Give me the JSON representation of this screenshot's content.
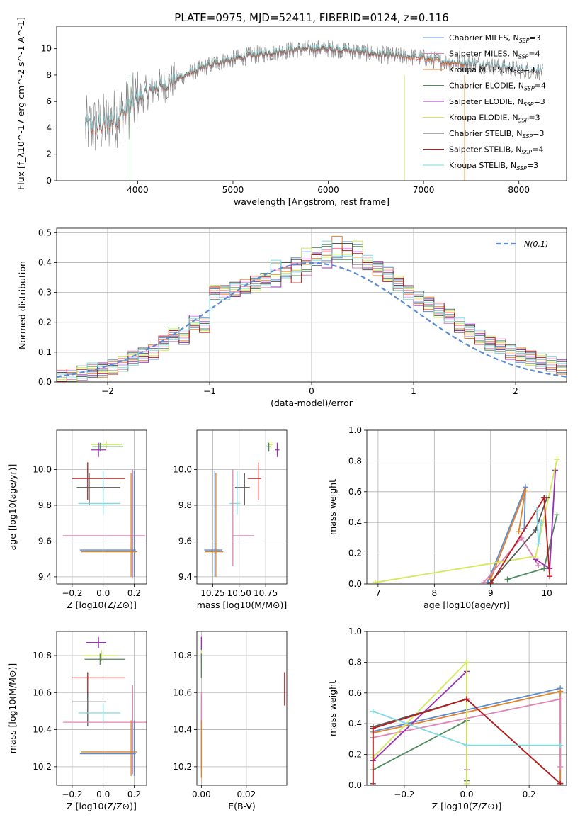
{
  "title": "PLATE=0975, MJD=52411, FIBERID=0124, z=0.116",
  "colors": {
    "Chabrier MILES": "#5b8bd0",
    "Salpeter MILES": "#e084b5",
    "Kroupa MILES": "#e0822a",
    "Chabrier ELODIE": "#4f8a5c",
    "Salpeter ELODIE": "#9b30b5",
    "Kroupa ELODIE": "#d4e85a",
    "Chabrier STELIB": "#555555",
    "Salpeter STELIB": "#b81c1c",
    "Kroupa STELIB": "#7fd9df",
    "gaussian": "#5b8bd0",
    "data": "#808080"
  },
  "chart_data": [
    {
      "id": "spectrum",
      "type": "line",
      "xlabel": "wavelength [Angstrom, rest frame]",
      "ylabel": "Flux [f_λ10^-17 erg cm^-2 s^-1 A^-1]",
      "xlim": [
        3150,
        8500
      ],
      "ylim": [
        0,
        11.7
      ],
      "xticks": [
        4000,
        5000,
        6000,
        7000,
        8000
      ],
      "yticks": [
        0,
        2,
        4,
        6,
        8,
        10
      ],
      "legend": [
        {
          "model": "Chabrier MILES",
          "label": "Chabrier MILES, N_SSP=3"
        },
        {
          "model": "Salpeter MILES",
          "label": "Salpeter MILES, N_SSP=4"
        },
        {
          "model": "Kroupa MILES",
          "label": "Kroupa MILES, N_SSP=3"
        },
        {
          "model": "Chabrier ELODIE",
          "label": "Chabrier ELODIE, N_SSP=4"
        },
        {
          "model": "Salpeter ELODIE",
          "label": "Salpeter ELODIE, N_SSP=3"
        },
        {
          "model": "Kroupa ELODIE",
          "label": "Kroupa ELODIE, N_SSP=3"
        },
        {
          "model": "Chabrier STELIB",
          "label": "Chabrier STELIB, N_SSP=3"
        },
        {
          "model": "Salpeter STELIB",
          "label": "Salpeter STELIB, N_SSP=4"
        },
        {
          "model": "Kroupa STELIB",
          "label": "Kroupa STELIB, N_SSP=3"
        }
      ],
      "continuum": [
        [
          3500,
          4.1
        ],
        [
          3600,
          4.2
        ],
        [
          3700,
          4.5
        ],
        [
          3800,
          4.9
        ],
        [
          3900,
          5.4
        ],
        [
          4000,
          6.2
        ],
        [
          4100,
          6.7
        ],
        [
          4200,
          7.1
        ],
        [
          4300,
          7.3
        ],
        [
          4400,
          7.7
        ],
        [
          4600,
          8.3
        ],
        [
          4800,
          8.9
        ],
        [
          5000,
          9.2
        ],
        [
          5200,
          9.5
        ],
        [
          5400,
          9.7
        ],
        [
          5600,
          9.9
        ],
        [
          5800,
          10.0
        ],
        [
          6000,
          10.0
        ],
        [
          6200,
          9.9
        ],
        [
          6400,
          9.7
        ],
        [
          6600,
          9.5
        ],
        [
          6800,
          9.4
        ],
        [
          7000,
          9.3
        ],
        [
          7200,
          9.0
        ],
        [
          7400,
          8.9
        ],
        [
          7600,
          8.8
        ],
        [
          7800,
          8.6
        ],
        [
          8000,
          8.4
        ],
        [
          8250,
          8.3
        ]
      ],
      "ranges": {
        "data": [
          3450,
          8250
        ],
        "MILES": [
          3500,
          7430
        ],
        "ELODIE": [
          3900,
          6800
        ],
        "STELIB": [
          3450,
          8250
        ]
      }
    },
    {
      "id": "residuals",
      "type": "histogram",
      "xlabel": "(data-model)/error",
      "ylabel": "Normed distribution",
      "xlim": [
        -2.5,
        2.5
      ],
      "ylim": [
        0,
        0.515
      ],
      "xticks": [
        -2,
        -1,
        0,
        1,
        2
      ],
      "yticks": [
        0.0,
        0.1,
        0.2,
        0.3,
        0.4,
        0.5
      ],
      "bin_width": 0.1,
      "legend": "N(0,1)",
      "values": [
        0.02,
        0.02,
        0.03,
        0.04,
        0.04,
        0.05,
        0.06,
        0.08,
        0.09,
        0.1,
        0.13,
        0.16,
        0.15,
        0.2,
        0.19,
        0.3,
        0.3,
        0.31,
        0.32,
        0.33,
        0.34,
        0.36,
        0.37,
        0.38,
        0.4,
        0.42,
        0.43,
        0.44,
        0.44,
        0.43,
        0.4,
        0.38,
        0.36,
        0.33,
        0.3,
        0.28,
        0.26,
        0.24,
        0.22,
        0.19,
        0.17,
        0.15,
        0.13,
        0.12,
        0.1,
        0.09,
        0.08,
        0.07,
        0.06,
        0.05
      ]
    },
    {
      "id": "age-vs-Z",
      "type": "errorbar",
      "xlabel": "Z [log10(Z/Z⊙)]",
      "ylabel": "age [log10(age/yr)]",
      "xlim": [
        -0.3,
        0.28
      ],
      "ylim": [
        9.36,
        10.22
      ],
      "xticks": [
        -0.2,
        0.0,
        0.2
      ],
      "yticks": [
        9.4,
        9.6,
        9.8,
        10.0
      ],
      "points": [
        {
          "model": "Kroupa ELODIE",
          "x": 0.02,
          "y": 10.14,
          "xerr": [
            0.1,
            0.1
          ],
          "yerr": [
            0.02,
            0.02
          ]
        },
        {
          "model": "Chabrier ELODIE",
          "x": -0.02,
          "y": 10.13,
          "xerr": [
            0.05,
            0.15
          ],
          "yerr": [
            0.03,
            0.02
          ]
        },
        {
          "model": "Salpeter ELODIE",
          "x": -0.03,
          "y": 10.11,
          "xerr": [
            0.05,
            0.05
          ],
          "yerr": [
            0.04,
            0.04
          ]
        },
        {
          "model": "Salpeter STELIB",
          "x": -0.1,
          "y": 9.95,
          "xerr": [
            0.1,
            0.24
          ],
          "yerr": [
            0.12,
            0.09
          ]
        },
        {
          "model": "Chabrier STELIB",
          "x": -0.09,
          "y": 9.9,
          "xerr": [
            0.08,
            0.2
          ],
          "yerr": [
            0.1,
            0.08
          ]
        },
        {
          "model": "Kroupa STELIB",
          "x": 0.0,
          "y": 9.81,
          "xerr": [
            0.16,
            0.11
          ],
          "yerr": [
            0.06,
            0.18
          ]
        },
        {
          "model": "Salpeter MILES",
          "x": 0.19,
          "y": 9.63,
          "xerr": [
            0.45,
            0.08
          ],
          "yerr": [
            0.24,
            0.37
          ]
        },
        {
          "model": "Chabrier MILES",
          "x": 0.2,
          "y": 9.55,
          "xerr": [
            0.35,
            0.01
          ],
          "yerr": [
            0.15,
            0.44
          ]
        },
        {
          "model": "Kroupa MILES",
          "x": 0.18,
          "y": 9.54,
          "xerr": [
            0.32,
            0.04
          ],
          "yerr": [
            0.14,
            0.44
          ]
        }
      ]
    },
    {
      "id": "age-vs-mass",
      "type": "errorbar",
      "xlabel": "mass [log10(M/M⊙)]",
      "ylabel": "",
      "xlim": [
        10.1,
        10.95
      ],
      "ylim": [
        9.36,
        10.22
      ],
      "xticks": [
        10.25,
        10.5,
        10.75
      ],
      "yticks": [
        9.4,
        9.6,
        9.8,
        10.0
      ],
      "points": [
        {
          "model": "Kroupa ELODIE",
          "x": 10.8,
          "y": 10.14,
          "xerr": [
            0.02,
            0.02
          ],
          "yerr": [
            0.02,
            0.02
          ]
        },
        {
          "model": "Chabrier ELODIE",
          "x": 10.78,
          "y": 10.13,
          "xerr": [
            0.02,
            0.02
          ],
          "yerr": [
            0.03,
            0.02
          ]
        },
        {
          "model": "Salpeter ELODIE",
          "x": 10.86,
          "y": 10.11,
          "xerr": [
            0.02,
            0.02
          ],
          "yerr": [
            0.04,
            0.04
          ]
        },
        {
          "model": "Salpeter STELIB",
          "x": 10.68,
          "y": 9.95,
          "xerr": [
            0.1,
            0.03
          ],
          "yerr": [
            0.12,
            0.09
          ]
        },
        {
          "model": "Chabrier STELIB",
          "x": 10.55,
          "y": 9.9,
          "xerr": [
            0.09,
            0.05
          ],
          "yerr": [
            0.1,
            0.08
          ]
        },
        {
          "model": "Kroupa STELIB",
          "x": 10.48,
          "y": 9.81,
          "xerr": [
            0.07,
            0.03
          ],
          "yerr": [
            0.06,
            0.18
          ]
        },
        {
          "model": "Salpeter MILES",
          "x": 10.44,
          "y": 9.63,
          "xerr": [
            0.0,
            0.2
          ],
          "yerr": [
            0.17,
            0.37
          ]
        },
        {
          "model": "Chabrier MILES",
          "x": 10.27,
          "y": 9.55,
          "xerr": [
            0.1,
            0.07
          ],
          "yerr": [
            0.15,
            0.44
          ]
        },
        {
          "model": "Kroupa MILES",
          "x": 10.28,
          "y": 9.54,
          "xerr": [
            0.1,
            0.07
          ],
          "yerr": [
            0.14,
            0.44
          ]
        }
      ]
    },
    {
      "id": "weight-vs-age",
      "type": "line",
      "xlabel": "age [log10(age/yr)]",
      "ylabel": "mass weight",
      "xlim": [
        6.8,
        10.35
      ],
      "ylim": [
        0,
        1.0
      ],
      "xticks": [
        7,
        8,
        9,
        10
      ],
      "yticks": [
        0.0,
        0.2,
        0.4,
        0.6,
        0.8,
        1.0
      ],
      "series": [
        {
          "model": "Chabrier MILES",
          "x": [
            8.95,
            9.62,
            9.6
          ],
          "y": [
            0.01,
            0.63,
            0.36
          ]
        },
        {
          "model": "Kroupa MILES",
          "x": [
            9.0,
            9.62,
            9.5
          ],
          "y": [
            0.03,
            0.61,
            0.34
          ]
        },
        {
          "model": "Salpeter MILES",
          "x": [
            8.88,
            9.55,
            9.85
          ],
          "y": [
            0.01,
            0.3,
            0.12
          ]
        },
        {
          "model": "Chabrier ELODIE",
          "x": [
            9.3,
            9.95,
            10.18
          ],
          "y": [
            0.03,
            0.1,
            0.45
          ]
        },
        {
          "model": "Salpeter ELODIE",
          "x": [
            9.8,
            10.05,
            10.15
          ],
          "y": [
            0.16,
            0.1,
            0.74
          ]
        },
        {
          "model": "Kroupa ELODIE",
          "x": [
            6.95,
            9.8,
            10.18
          ],
          "y": [
            0.01,
            0.18,
            0.81
          ]
        },
        {
          "model": "Chabrier STELIB",
          "x": [
            9.0,
            9.8,
            10.0
          ],
          "y": [
            0.01,
            0.35,
            0.56
          ]
        },
        {
          "model": "Salpeter STELIB",
          "x": [
            9.0,
            9.95,
            10.05
          ],
          "y": [
            0.0,
            0.56,
            0.05
          ]
        },
        {
          "model": "Kroupa STELIB",
          "x": [
            9.82,
            9.85,
            9.9
          ],
          "y": [
            0.48,
            0.26,
            0.4
          ]
        }
      ]
    },
    {
      "id": "mass-vs-Z",
      "type": "errorbar",
      "xlabel": "Z [log10(Z/Z⊙)]",
      "ylabel": "mass [log10(M/M⊙)]",
      "xlim": [
        -0.3,
        0.28
      ],
      "ylim": [
        10.1,
        10.93
      ],
      "xticks": [
        -0.2,
        0.0,
        0.2
      ],
      "yticks": [
        10.2,
        10.4,
        10.6,
        10.8
      ],
      "points": [
        {
          "model": "Salpeter ELODIE",
          "x": -0.03,
          "y": 10.87,
          "xerr": [
            0.08,
            0.05
          ],
          "yerr": [
            0.03,
            0.03
          ]
        },
        {
          "model": "Kroupa ELODIE",
          "x": -0.01,
          "y": 10.8,
          "xerr": [
            0.12,
            0.1
          ],
          "yerr": [
            0.03,
            0.03
          ]
        },
        {
          "model": "Chabrier ELODIE",
          "x": -0.02,
          "y": 10.78,
          "xerr": [
            0.1,
            0.16
          ],
          "yerr": [
            0.03,
            0.03
          ]
        },
        {
          "model": "Salpeter STELIB",
          "x": -0.1,
          "y": 10.68,
          "xerr": [
            0.1,
            0.24
          ],
          "yerr": [
            0.1,
            0.03
          ]
        },
        {
          "model": "Chabrier STELIB",
          "x": -0.1,
          "y": 10.55,
          "xerr": [
            0.1,
            0.12
          ],
          "yerr": [
            0.13,
            0.05
          ]
        },
        {
          "model": "Kroupa STELIB",
          "x": 0.0,
          "y": 10.49,
          "xerr": [
            0.16,
            0.11
          ],
          "yerr": [
            0.06,
            0.05
          ]
        },
        {
          "model": "Salpeter MILES",
          "x": 0.19,
          "y": 10.44,
          "xerr": [
            0.45,
            0.09
          ],
          "yerr": [
            0.28,
            0.2
          ]
        },
        {
          "model": "Kroupa MILES",
          "x": 0.18,
          "y": 10.28,
          "xerr": [
            0.32,
            0.04
          ],
          "yerr": [
            0.13,
            0.17
          ]
        },
        {
          "model": "Chabrier MILES",
          "x": 0.2,
          "y": 10.27,
          "xerr": [
            0.35,
            0.01
          ],
          "yerr": [
            0.12,
            0.18
          ]
        }
      ]
    },
    {
      "id": "mass-vs-EBV",
      "type": "errorbar",
      "xlabel": "E(B-V)",
      "ylabel": "",
      "xlim": [
        -0.002,
        0.038
      ],
      "ylim": [
        10.1,
        10.93
      ],
      "xticks": [
        0.0,
        0.02
      ],
      "yticks": [
        10.2,
        10.4,
        10.6,
        10.8
      ],
      "points": [
        {
          "model": "Salpeter ELODIE",
          "x": 0.0,
          "y": 10.87,
          "xerr": [
            0,
            0
          ],
          "yerr": [
            0.04,
            0.03
          ]
        },
        {
          "model": "Kroupa ELODIE",
          "x": 0.0,
          "y": 10.8,
          "xerr": [
            0,
            0
          ],
          "yerr": [
            0.05,
            0.03
          ]
        },
        {
          "model": "Chabrier ELODIE",
          "x": 0.0,
          "y": 10.78,
          "xerr": [
            0,
            0
          ],
          "yerr": [
            0.1,
            0.03
          ]
        },
        {
          "model": "Salpeter STELIB",
          "x": 0.037,
          "y": 10.62,
          "xerr": [
            0,
            0
          ],
          "yerr": [
            0.09,
            0.09
          ]
        },
        {
          "model": "Kroupa STELIB",
          "x": 0.0,
          "y": 10.5,
          "xerr": [
            0,
            0
          ],
          "yerr": [
            0.07,
            0.07
          ]
        },
        {
          "model": "Salpeter MILES",
          "x": 0.0,
          "y": 10.4,
          "xerr": [
            0,
            0
          ],
          "yerr": [
            0.22,
            0.2
          ]
        },
        {
          "model": "Kroupa MILES",
          "x": 0.0,
          "y": 10.3,
          "xerr": [
            0,
            0
          ],
          "yerr": [
            0.16,
            0.15
          ]
        }
      ]
    },
    {
      "id": "weight-vs-Z",
      "type": "line",
      "xlabel": "Z [log10(Z/Z⊙)]",
      "ylabel": "mass weight",
      "xlim": [
        -0.32,
        0.32
      ],
      "ylim": [
        0,
        1.0
      ],
      "xticks": [
        -0.2,
        0.0,
        0.2
      ],
      "yticks": [
        0.0,
        0.2,
        0.4,
        0.6,
        0.8,
        1.0
      ],
      "series": [
        {
          "model": "Chabrier MILES",
          "x": [
            -0.3,
            0.3,
            0.3
          ],
          "y": [
            0.35,
            0.63,
            0.02
          ]
        },
        {
          "model": "Kroupa MILES",
          "x": [
            -0.3,
            0.3,
            0.3
          ],
          "y": [
            0.34,
            0.61,
            0.01
          ]
        },
        {
          "model": "Salpeter MILES",
          "x": [
            -0.3,
            0.3,
            0.3
          ],
          "y": [
            0.31,
            0.56,
            0.12
          ]
        },
        {
          "model": "Chabrier ELODIE",
          "x": [
            -0.3,
            0.0,
            0.0
          ],
          "y": [
            0.1,
            0.42,
            0.03
          ]
        },
        {
          "model": "Salpeter ELODIE",
          "x": [
            -0.3,
            0.0,
            0.0
          ],
          "y": [
            0.16,
            0.74,
            0.1
          ]
        },
        {
          "model": "Kroupa ELODIE",
          "x": [
            -0.3,
            0.0,
            0.0
          ],
          "y": [
            0.18,
            0.8,
            0.01
          ]
        },
        {
          "model": "Chabrier STELIB",
          "x": [
            -0.3,
            -0.3,
            0.0,
            0.3
          ],
          "y": [
            0.01,
            0.38,
            0.56,
            0.01
          ]
        },
        {
          "model": "Salpeter STELIB",
          "x": [
            -0.3,
            -0.3,
            0.0,
            0.3
          ],
          "y": [
            0.0,
            0.37,
            0.56,
            0.01
          ]
        },
        {
          "model": "Kroupa STELIB",
          "x": [
            -0.3,
            0.0,
            0.3
          ],
          "y": [
            0.48,
            0.26,
            0.26
          ]
        }
      ]
    }
  ]
}
